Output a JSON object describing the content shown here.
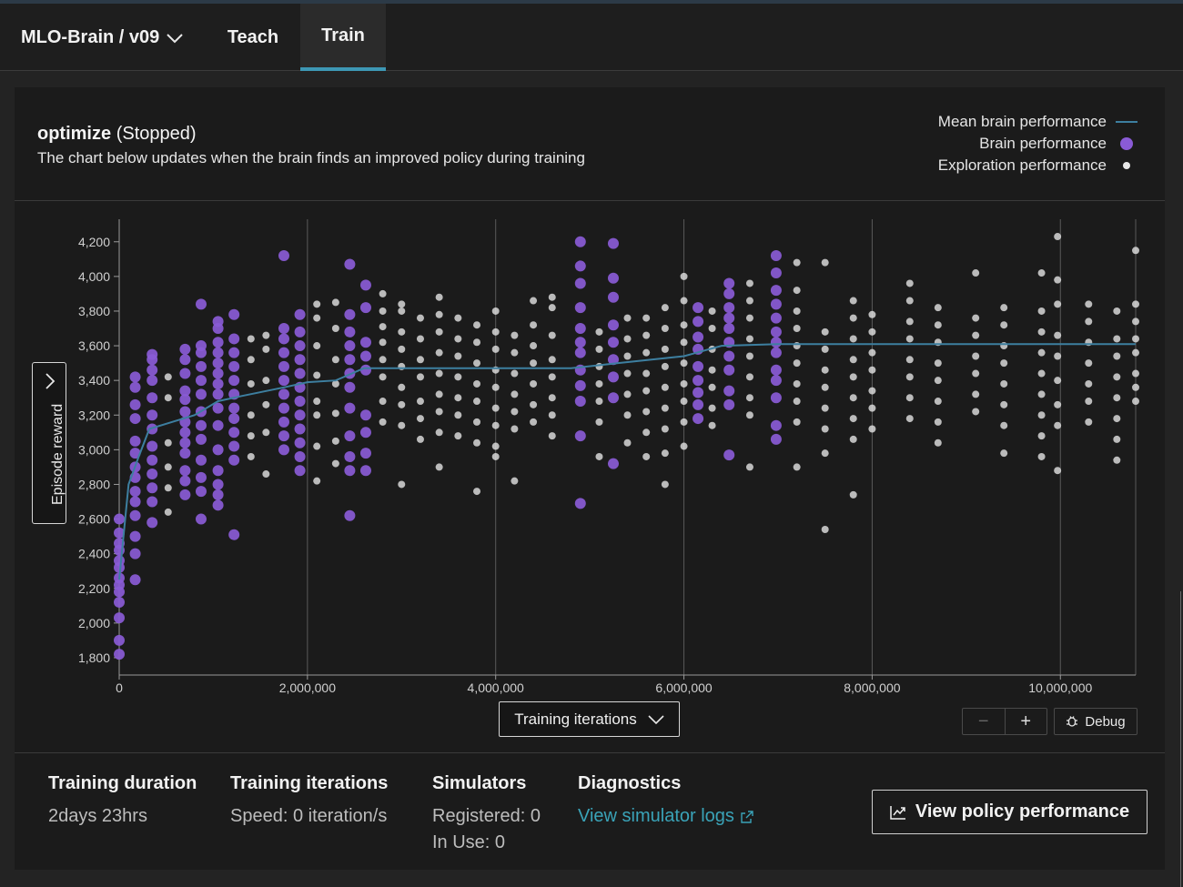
{
  "nav": {
    "brand": "MLO-Brain / v09",
    "tabs": [
      {
        "label": "Teach",
        "active": false
      },
      {
        "label": "Train",
        "active": true
      }
    ]
  },
  "panel": {
    "title_bold": "optimize",
    "title_status": "(Stopped)",
    "subtitle": "The chart below updates when the brain finds an improved policy during training",
    "legend": [
      {
        "label": "Mean brain performance",
        "mark": "line",
        "color": "#3d7fa0"
      },
      {
        "label": "Brain performance",
        "mark": "dot-large",
        "color": "#8a5bd6"
      },
      {
        "label": "Exploration performance",
        "mark": "dot-small",
        "color": "#e8e8e8"
      }
    ],
    "y_selector_label": "Episode reward",
    "x_selector_label": "Training iterations",
    "debug_label": "Debug",
    "zoom_out_symbol": "−",
    "zoom_in_symbol": "+"
  },
  "chart_data": {
    "type": "scatter",
    "title": "",
    "xlabel": "Training iterations",
    "ylabel": "Episode reward",
    "xlim": [
      0,
      10800000
    ],
    "ylim": [
      1700,
      4330
    ],
    "x_ticks": [
      0,
      2000000,
      4000000,
      6000000,
      8000000,
      10000000
    ],
    "x_tick_labels": [
      "0",
      "2,000,000",
      "4,000,000",
      "6,000,000",
      "8,000,000",
      "10,000,000"
    ],
    "y_ticks": [
      1800,
      2000,
      2200,
      2400,
      2600,
      2800,
      3000,
      3200,
      3400,
      3600,
      3800,
      4000,
      4200
    ],
    "y_tick_labels": [
      "1,800",
      "2,000",
      "2,200",
      "2,400",
      "2,600",
      "2,800",
      "3,000",
      "3,200",
      "3,400",
      "3,600",
      "3,800",
      "4,000",
      "4,200"
    ],
    "grid": "vertical",
    "legend_position": "top-right",
    "series": [
      {
        "name": "Mean brain performance",
        "kind": "line",
        "color": "#3d7fa0",
        "x": [
          0,
          100000,
          200000,
          320000,
          500000,
          800000,
          1050000,
          1300000,
          1750000,
          2000000,
          2300000,
          2600000,
          3000000,
          4000000,
          4800000,
          5300000,
          6000000,
          6400000,
          7000000,
          8000000,
          9000000,
          10000000,
          10800000
        ],
        "y": [
          2250,
          2800,
          2950,
          3120,
          3150,
          3200,
          3280,
          3310,
          3360,
          3390,
          3400,
          3470,
          3470,
          3470,
          3470,
          3500,
          3540,
          3600,
          3610,
          3610,
          3610,
          3610,
          3610
        ]
      },
      {
        "name": "Brain performance",
        "kind": "points",
        "color": "#8a5bd6",
        "columns": [
          {
            "x": 0,
            "y": [
              1820,
              1900,
              2030,
              2120,
              2180,
              2220,
              2260,
              2320,
              2360,
              2420,
              2460,
              2520,
              2600
            ]
          },
          {
            "x": 170000,
            "y": [
              2250,
              2400,
              2500,
              2620,
              2700,
              2760,
              2840,
              2900,
              2980,
              3050,
              3180,
              3260,
              3360,
              3420
            ]
          },
          {
            "x": 350000,
            "y": [
              2580,
              2700,
              2780,
              2860,
              2940,
              3020,
              3120,
              3200,
              3300,
              3400,
              3460,
              3520,
              3550
            ]
          },
          {
            "x": 700000,
            "y": [
              2740,
              2820,
              2880,
              2980,
              3040,
              3100,
              3160,
              3220,
              3290,
              3340,
              3440,
              3520,
              3580
            ]
          },
          {
            "x": 870000,
            "y": [
              2600,
              2760,
              2840,
              2940,
              3060,
              3140,
              3220,
              3320,
              3400,
              3480,
              3560,
              3600,
              3840
            ]
          },
          {
            "x": 1050000,
            "y": [
              2680,
              2740,
              2800,
              2880,
              3000,
              3140,
              3240,
              3320,
              3380,
              3440,
              3500,
              3560,
              3620,
              3700,
              3740
            ]
          },
          {
            "x": 1220000,
            "y": [
              2510,
              2940,
              3020,
              3100,
              3180,
              3240,
              3320,
              3400,
              3480,
              3560,
              3640,
              3780
            ]
          },
          {
            "x": 1750000,
            "y": [
              3000,
              3080,
              3160,
              3240,
              3320,
              3400,
              3480,
              3560,
              3640,
              3700,
              4120
            ]
          },
          {
            "x": 1920000,
            "y": [
              2880,
              2960,
              3040,
              3120,
              3200,
              3280,
              3360,
              3440,
              3520,
              3600,
              3680,
              3780
            ]
          },
          {
            "x": 2450000,
            "y": [
              2620,
              2880,
              2960,
              3080,
              3240,
              3360,
              3440,
              3520,
              3600,
              3680,
              3780,
              4070
            ]
          },
          {
            "x": 2620000,
            "y": [
              2880,
              2980,
              3100,
              3200,
              3460,
              3540,
              3620,
              3820,
              3950
            ]
          },
          {
            "x": 4900000,
            "y": [
              2690,
              3080,
              3280,
              3370,
              3460,
              3560,
              3620,
              3700,
              3820,
              3960,
              4060,
              4200
            ]
          },
          {
            "x": 5250000,
            "y": [
              2920,
              3300,
              3420,
              3520,
              3620,
              3720,
              3880,
              3990,
              4190
            ]
          },
          {
            "x": 6150000,
            "y": [
              3180,
              3260,
              3330,
              3400,
              3480,
              3580,
              3650,
              3740,
              3820
            ]
          },
          {
            "x": 6480000,
            "y": [
              2970,
              3260,
              3340,
              3460,
              3540,
              3620,
              3700,
              3760,
              3820,
              3900,
              3960
            ]
          },
          {
            "x": 6980000,
            "y": [
              3060,
              3140,
              3300,
              3400,
              3460,
              3560,
              3620,
              3680,
              3760,
              3840,
              3920,
              4020,
              4120
            ]
          }
        ]
      },
      {
        "name": "Exploration performance",
        "kind": "points",
        "color": "#e8e8e8",
        "columns": [
          {
            "x": 520000,
            "y": [
              2640,
              2780,
              2900,
              3040,
              3300,
              3420
            ]
          },
          {
            "x": 1400000,
            "y": [
              2960,
              3080,
              3200,
              3380,
              3520,
              3640
            ]
          },
          {
            "x": 1560000,
            "y": [
              2860,
              3100,
              3260,
              3400,
              3580,
              3660
            ]
          },
          {
            "x": 2100000,
            "y": [
              2820,
              3020,
              3200,
              3280,
              3430,
              3600,
              3760,
              3840
            ]
          },
          {
            "x": 2300000,
            "y": [
              2920,
              3050,
              3210,
              3380,
              3520,
              3700,
              3850
            ]
          },
          {
            "x": 2800000,
            "y": [
              3160,
              3280,
              3420,
              3520,
              3620,
              3710,
              3800,
              3900
            ]
          },
          {
            "x": 3000000,
            "y": [
              2800,
              3140,
              3260,
              3360,
              3480,
              3580,
              3680,
              3800,
              3840
            ]
          },
          {
            "x": 3200000,
            "y": [
              3060,
              3180,
              3280,
              3420,
              3520,
              3640,
              3760
            ]
          },
          {
            "x": 3400000,
            "y": [
              2900,
              3100,
              3220,
              3320,
              3440,
              3560,
              3680,
              3780,
              3880
            ]
          },
          {
            "x": 3600000,
            "y": [
              3080,
              3200,
              3300,
              3420,
              3540,
              3640,
              3760
            ]
          },
          {
            "x": 3800000,
            "y": [
              2760,
              3040,
              3160,
              3280,
              3380,
              3500,
              3620,
              3720
            ]
          },
          {
            "x": 4000000,
            "y": [
              2960,
              3020,
              3140,
              3240,
              3360,
              3460,
              3580,
              3680,
              3800
            ]
          },
          {
            "x": 4200000,
            "y": [
              2820,
              3120,
              3220,
              3320,
              3440,
              3560,
              3660
            ]
          },
          {
            "x": 4400000,
            "y": [
              3160,
              3260,
              3380,
              3500,
              3600,
              3720,
              3860
            ]
          },
          {
            "x": 4600000,
            "y": [
              3080,
              3200,
              3300,
              3420,
              3520,
              3660,
              3820,
              3880
            ]
          },
          {
            "x": 5100000,
            "y": [
              2960,
              3160,
              3280,
              3380,
              3480,
              3580,
              3680
            ]
          },
          {
            "x": 5400000,
            "y": [
              3040,
              3200,
              3320,
              3440,
              3540,
              3640,
              3760
            ]
          },
          {
            "x": 5600000,
            "y": [
              2960,
              3100,
              3220,
              3340,
              3440,
              3560,
              3660,
              3760
            ]
          },
          {
            "x": 5800000,
            "y": [
              2800,
              2980,
              3120,
              3240,
              3360,
              3480,
              3580,
              3700,
              3820
            ]
          },
          {
            "x": 6000000,
            "y": [
              3020,
              3160,
              3280,
              3380,
              3500,
              3620,
              3720,
              3860,
              4000
            ]
          },
          {
            "x": 6300000,
            "y": [
              3140,
              3240,
              3360,
              3460,
              3580,
              3700,
              3800
            ]
          },
          {
            "x": 6700000,
            "y": [
              2900,
              3200,
              3300,
              3420,
              3540,
              3640,
              3760,
              3860,
              3960
            ]
          },
          {
            "x": 7200000,
            "y": [
              2900,
              3160,
              3280,
              3380,
              3500,
              3600,
              3700,
              3800,
              3920,
              4080
            ]
          },
          {
            "x": 7500000,
            "y": [
              2540,
              2980,
              3120,
              3240,
              3360,
              3460,
              3580,
              3680,
              4080
            ]
          },
          {
            "x": 7800000,
            "y": [
              2740,
              3060,
              3180,
              3300,
              3420,
              3520,
              3640,
              3760,
              3860
            ]
          },
          {
            "x": 8000000,
            "y": [
              3120,
              3240,
              3340,
              3460,
              3560,
              3680,
              3780
            ]
          },
          {
            "x": 8400000,
            "y": [
              3180,
              3300,
              3420,
              3520,
              3640,
              3740,
              3860,
              3960
            ]
          },
          {
            "x": 8700000,
            "y": [
              3040,
              3160,
              3280,
              3400,
              3500,
              3620,
              3720,
              3820
            ]
          },
          {
            "x": 9100000,
            "y": [
              3220,
              3320,
              3440,
              3540,
              3660,
              3760,
              4020
            ]
          },
          {
            "x": 9400000,
            "y": [
              2980,
              3140,
              3260,
              3380,
              3500,
              3600,
              3720,
              3820
            ]
          },
          {
            "x": 9800000,
            "y": [
              2960,
              3080,
              3200,
              3320,
              3440,
              3560,
              3680,
              3800,
              4020
            ]
          },
          {
            "x": 9970000,
            "y": [
              2880,
              3140,
              3260,
              3400,
              3540,
              3660,
              3840,
              3980,
              4230
            ]
          },
          {
            "x": 10300000,
            "y": [
              3160,
              3280,
              3380,
              3500,
              3620,
              3740,
              3840
            ]
          },
          {
            "x": 10600000,
            "y": [
              2940,
              3060,
              3180,
              3300,
              3420,
              3540,
              3640,
              3800
            ]
          },
          {
            "x": 10800000,
            "y": [
              3280,
              3360,
              3440,
              3560,
              3640,
              3740,
              3840,
              4150
            ]
          }
        ]
      }
    ]
  },
  "stats": {
    "duration": {
      "label": "Training duration",
      "value": "2days 23hrs"
    },
    "iterations": {
      "label": "Training iterations",
      "value": "Speed: 0 iteration/s"
    },
    "simulators": {
      "label": "Simulators",
      "registered": "Registered: 0",
      "in_use": "In Use: 0"
    },
    "diagnostics": {
      "label": "Diagnostics",
      "link": "View simulator logs"
    }
  },
  "policy_button": {
    "label": "View policy performance"
  },
  "icons": {
    "brand_chevron": "chevron-down-icon",
    "y_chevron": "chevron-right-icon",
    "x_chevron": "chevron-down-icon",
    "debug": "bug-icon",
    "external_link": "external-link-icon",
    "policy": "line-chart-icon"
  }
}
